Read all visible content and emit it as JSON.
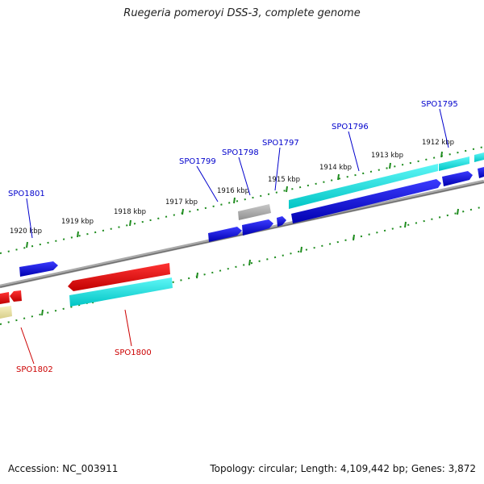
{
  "title": "Ruegeria pomeroyi DSS-3, complete genome",
  "footer": {
    "accession": "Accession: NC_003911",
    "summary": "Topology: circular; Length: 4,109,442 bp; Genes: 3,872"
  },
  "colors": {
    "backbone": "#808080",
    "tick": "#1e8c1e",
    "label_forward": "#0000cc",
    "label_reverse": "#cc0000",
    "gene_blue": "#0000dd",
    "gene_cyan": "#00e0e0",
    "gene_red": "#ee0000",
    "gene_gray": "#a0a0a0",
    "gene_yellow": "#e8e0a0"
  },
  "kbp_labels": [
    "1912 kbp",
    "1913 kbp",
    "1914 kbp",
    "1915 kbp",
    "1916 kbp",
    "1917 kbp",
    "1918 kbp",
    "1919 kbp",
    "1920 kbp"
  ],
  "genes": {
    "forward": [
      "SPO1795",
      "SPO1796",
      "SPO1797",
      "SPO1798",
      "SPO1799",
      "SPO1801"
    ],
    "reverse": [
      "SPO1800",
      "SPO1802"
    ]
  }
}
